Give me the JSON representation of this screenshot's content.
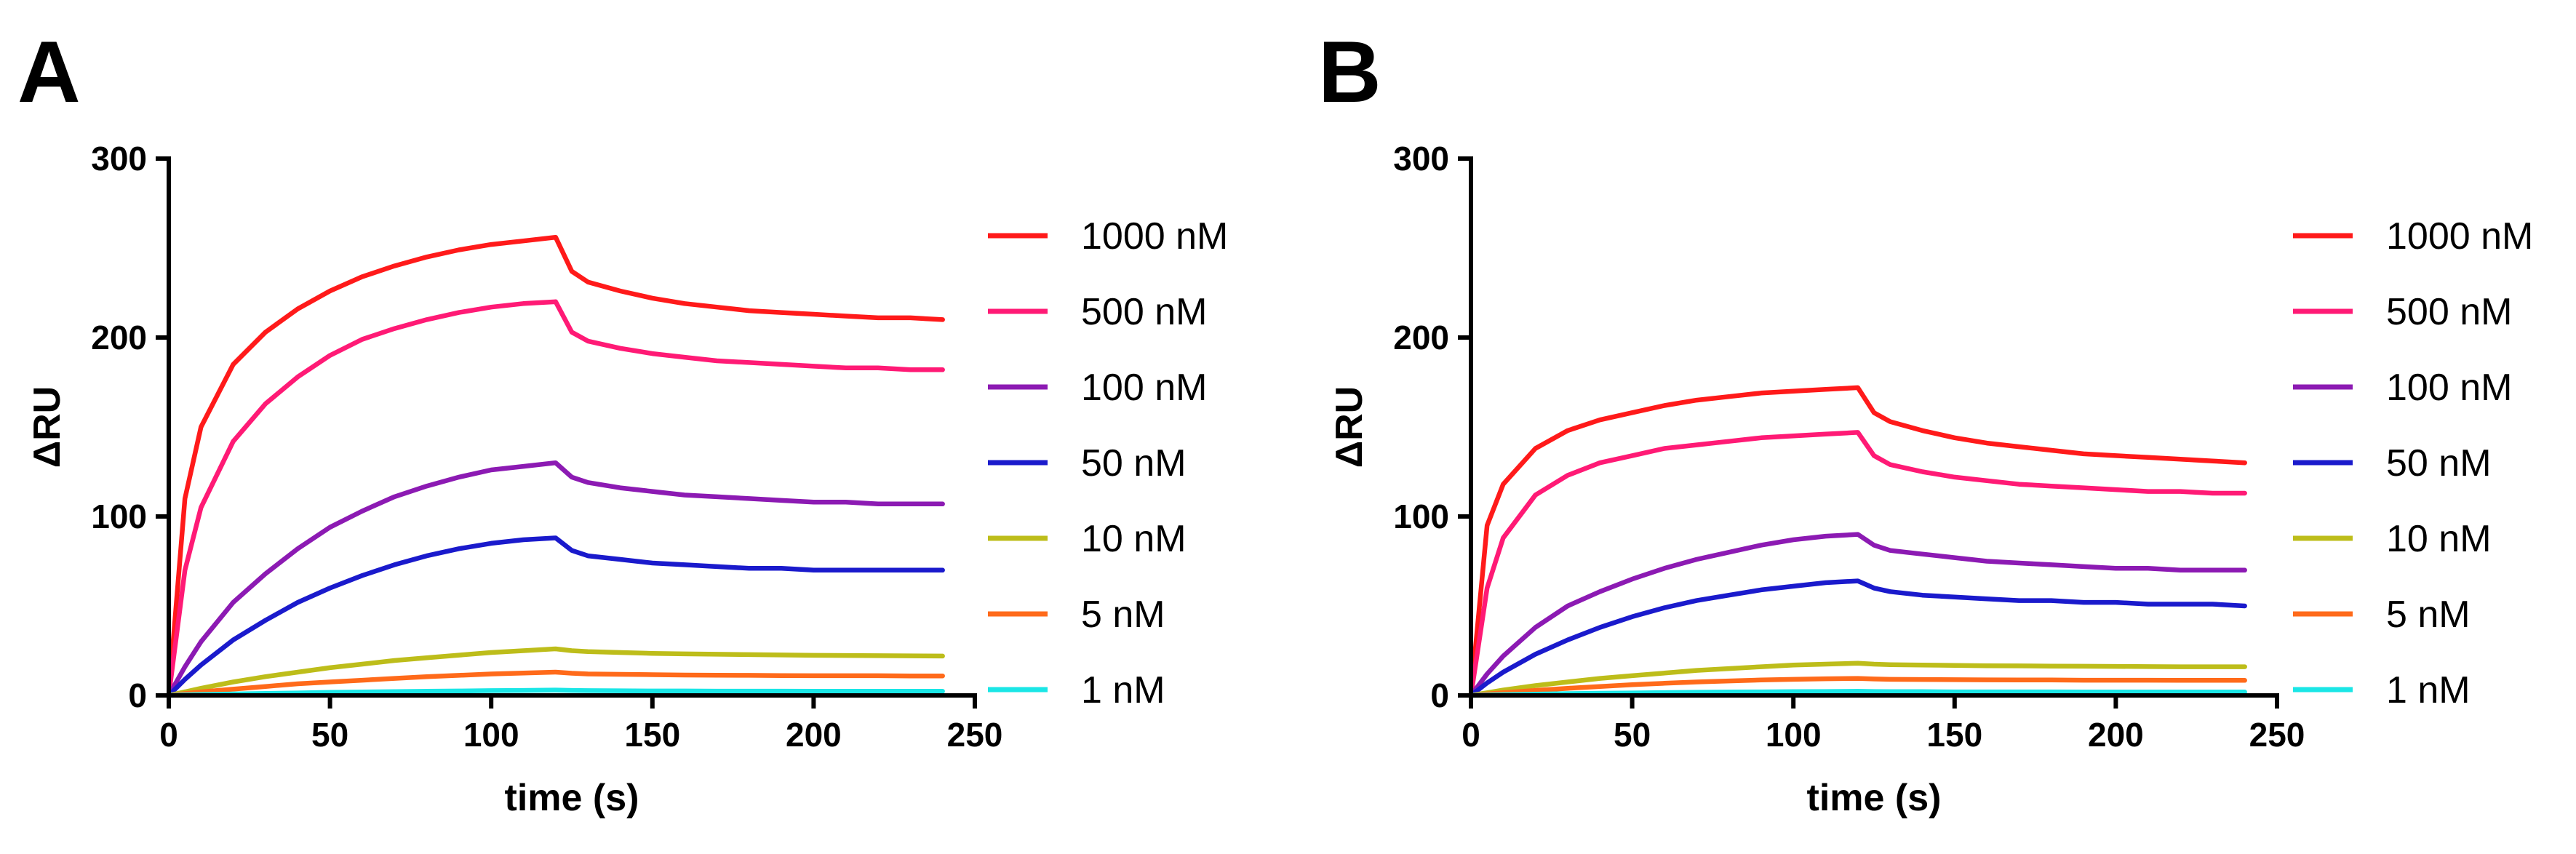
{
  "chart_data": [
    {
      "type": "line",
      "panel_label": "A",
      "title": "",
      "xlabel": "time (s)",
      "ylabel": "ΔRU",
      "xlim": [
        0,
        250
      ],
      "ylim": [
        0,
        300
      ],
      "xticks": [
        0,
        50,
        100,
        150,
        200,
        250
      ],
      "yticks": [
        0,
        100,
        200,
        300
      ],
      "grid": false,
      "legend_position": "right",
      "x": [
        0,
        5,
        10,
        20,
        30,
        40,
        50,
        60,
        70,
        80,
        90,
        100,
        110,
        120,
        125,
        130,
        140,
        150,
        160,
        170,
        180,
        190,
        200,
        210,
        220,
        230,
        240
      ],
      "series": [
        {
          "name": "1000 nM",
          "color": "#ff1a1a",
          "values": [
            0,
            110,
            150,
            185,
            203,
            216,
            226,
            234,
            240,
            245,
            249,
            252,
            254,
            256,
            237,
            231,
            226,
            222,
            219,
            217,
            215,
            214,
            213,
            212,
            211,
            211,
            210
          ]
        },
        {
          "name": "500 nM",
          "color": "#ff1a75",
          "values": [
            0,
            70,
            105,
            142,
            163,
            178,
            190,
            199,
            205,
            210,
            214,
            217,
            219,
            220,
            203,
            198,
            194,
            191,
            189,
            187,
            186,
            185,
            184,
            183,
            183,
            182,
            182
          ]
        },
        {
          "name": "100 nM",
          "color": "#8c1ab3",
          "values": [
            0,
            16,
            30,
            52,
            68,
            82,
            94,
            103,
            111,
            117,
            122,
            126,
            128,
            130,
            122,
            119,
            116,
            114,
            112,
            111,
            110,
            109,
            108,
            108,
            107,
            107,
            107
          ]
        },
        {
          "name": "50 nM",
          "color": "#1a1acc",
          "values": [
            0,
            9,
            17,
            31,
            42,
            52,
            60,
            67,
            73,
            78,
            82,
            85,
            87,
            88,
            81,
            78,
            76,
            74,
            73,
            72,
            71,
            71,
            70,
            70,
            70,
            70,
            70
          ]
        },
        {
          "name": "10 nM",
          "color": "#bdbd1a",
          "values": [
            0,
            2,
            4,
            7.5,
            10.5,
            13,
            15.5,
            17.5,
            19.5,
            21,
            22.5,
            24,
            25,
            26,
            25,
            24.5,
            24,
            23.5,
            23.2,
            23,
            22.8,
            22.6,
            22.4,
            22.3,
            22.2,
            22.1,
            22
          ]
        },
        {
          "name": "5 nM",
          "color": "#ff6a1a",
          "values": [
            0,
            1,
            2,
            3.5,
            5,
            6.5,
            7.5,
            8.5,
            9.5,
            10.5,
            11.2,
            12,
            12.5,
            13,
            12.4,
            12,
            11.8,
            11.6,
            11.4,
            11.3,
            11.2,
            11.1,
            11,
            11,
            11,
            10.9,
            10.9
          ]
        },
        {
          "name": "1 nM",
          "color": "#1ae6e6",
          "values": [
            0,
            0.3,
            0.5,
            0.8,
            1.1,
            1.4,
            1.7,
            1.9,
            2.1,
            2.3,
            2.5,
            2.7,
            2.8,
            3,
            2.8,
            2.7,
            2.6,
            2.5,
            2.5,
            2.4,
            2.4,
            2.4,
            2.3,
            2.3,
            2.3,
            2.3,
            2.3
          ]
        }
      ]
    },
    {
      "type": "line",
      "panel_label": "B",
      "title": "",
      "xlabel": "time (s)",
      "ylabel": "ΔRU",
      "xlim": [
        0,
        250
      ],
      "ylim": [
        0,
        300
      ],
      "xticks": [
        0,
        50,
        100,
        150,
        200,
        250
      ],
      "yticks": [
        0,
        100,
        200,
        300
      ],
      "grid": false,
      "legend_position": "right",
      "x": [
        0,
        5,
        10,
        20,
        30,
        40,
        50,
        60,
        70,
        80,
        90,
        100,
        110,
        120,
        125,
        130,
        140,
        150,
        160,
        170,
        180,
        190,
        200,
        210,
        220,
        230,
        240
      ],
      "series": [
        {
          "name": "1000 nM",
          "color": "#ff1a1a",
          "values": [
            0,
            95,
            118,
            138,
            148,
            154,
            158,
            162,
            165,
            167,
            169,
            170,
            171,
            172,
            158,
            153,
            148,
            144,
            141,
            139,
            137,
            135,
            134,
            133,
            132,
            131,
            130
          ]
        },
        {
          "name": "500 nM",
          "color": "#ff1a75",
          "values": [
            0,
            60,
            88,
            112,
            123,
            130,
            134,
            138,
            140,
            142,
            144,
            145,
            146,
            147,
            134,
            129,
            125,
            122,
            120,
            118,
            117,
            116,
            115,
            114,
            114,
            113,
            113
          ]
        },
        {
          "name": "100 nM",
          "color": "#8c1ab3",
          "values": [
            0,
            12,
            22,
            38,
            50,
            58,
            65,
            71,
            76,
            80,
            84,
            87,
            89,
            90,
            84,
            81,
            79,
            77,
            75,
            74,
            73,
            72,
            71,
            71,
            70,
            70,
            70
          ]
        },
        {
          "name": "50 nM",
          "color": "#1a1acc",
          "values": [
            0,
            7,
            13,
            23,
            31,
            38,
            44,
            49,
            53,
            56,
            59,
            61,
            63,
            64,
            60,
            58,
            56,
            55,
            54,
            53,
            53,
            52,
            52,
            51,
            51,
            51,
            50
          ]
        },
        {
          "name": "10 nM",
          "color": "#bdbd1a",
          "values": [
            0,
            1.5,
            3,
            5.5,
            7.5,
            9.5,
            11,
            12.5,
            14,
            15,
            16,
            17,
            17.5,
            18,
            17.5,
            17.2,
            17,
            16.8,
            16.6,
            16.5,
            16.4,
            16.3,
            16.2,
            16.1,
            16,
            16,
            16
          ]
        },
        {
          "name": "5 nM",
          "color": "#ff6a1a",
          "values": [
            0,
            0.8,
            1.5,
            2.8,
            4,
            5,
            6,
            6.8,
            7.5,
            8.1,
            8.6,
            9,
            9.3,
            9.5,
            9.2,
            9,
            8.9,
            8.8,
            8.7,
            8.6,
            8.6,
            8.5,
            8.5,
            8.5,
            8.4,
            8.4,
            8.4
          ]
        },
        {
          "name": "1 nM",
          "color": "#1ae6e6",
          "values": [
            0,
            0.2,
            0.4,
            0.7,
            1,
            1.2,
            1.4,
            1.6,
            1.8,
            1.9,
            2,
            2.1,
            2.2,
            2.3,
            2.2,
            2.1,
            2.1,
            2,
            2,
            2,
            2,
            1.9,
            1.9,
            1.9,
            1.9,
            1.9,
            1.9
          ]
        }
      ]
    }
  ]
}
